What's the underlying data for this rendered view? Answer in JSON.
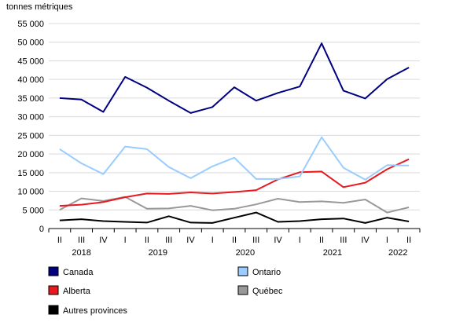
{
  "chart_data": {
    "type": "line",
    "ylabel": "tonnes métriques",
    "ylim": [
      0,
      55000
    ],
    "yticks": [
      0,
      5000,
      10000,
      15000,
      20000,
      25000,
      30000,
      35000,
      40000,
      45000,
      50000,
      55000
    ],
    "ytick_labels": [
      "0",
      "5 000",
      "10 000",
      "15 000",
      "20 000",
      "25 000",
      "30 000",
      "35 000",
      "40 000",
      "45 000",
      "50 000",
      "55 000"
    ],
    "categories": [
      "II",
      "III",
      "IV",
      "I",
      "II",
      "III",
      "IV",
      "I",
      "II",
      "III",
      "IV",
      "I",
      "II",
      "III",
      "IV",
      "I",
      "II"
    ],
    "year_labels": [
      {
        "label": "2018",
        "start": 0,
        "end": 2
      },
      {
        "label": "2019",
        "start": 3,
        "end": 6
      },
      {
        "label": "2020",
        "start": 7,
        "end": 10
      },
      {
        "label": "2021",
        "start": 11,
        "end": 14
      },
      {
        "label": "2022",
        "start": 15,
        "end": 16
      }
    ],
    "grid": true,
    "legend_position": "bottom",
    "series": [
      {
        "name": "Canada",
        "color": "#000080",
        "values": [
          35000,
          34600,
          31300,
          40700,
          37800,
          34300,
          31000,
          32600,
          37900,
          34300,
          36400,
          38100,
          49700,
          37000,
          34900,
          40100,
          43200
        ]
      },
      {
        "name": "Ontario",
        "color": "#99ccff",
        "values": [
          21300,
          17500,
          14600,
          22000,
          21300,
          16500,
          13500,
          16700,
          19000,
          13300,
          13300,
          14000,
          24500,
          16300,
          13100,
          17000,
          16900
        ]
      },
      {
        "name": "Alberta",
        "color": "#e8191e",
        "values": [
          6100,
          6400,
          7100,
          8400,
          9400,
          9300,
          9700,
          9400,
          9800,
          10300,
          13200,
          15100,
          15300,
          11100,
          12300,
          15900,
          18600
        ]
      },
      {
        "name": "Québec",
        "color": "#999999",
        "values": [
          5000,
          8100,
          7400,
          8500,
          5300,
          5400,
          6100,
          4900,
          5300,
          6500,
          8000,
          7100,
          7300,
          6900,
          7800,
          4300,
          5700
        ]
      },
      {
        "name": "Autres provinces",
        "color": "#000000",
        "values": [
          2200,
          2500,
          2000,
          1800,
          1600,
          3300,
          1600,
          1500,
          2900,
          4300,
          1800,
          2000,
          2500,
          2700,
          1500,
          2900,
          1900
        ]
      }
    ]
  }
}
